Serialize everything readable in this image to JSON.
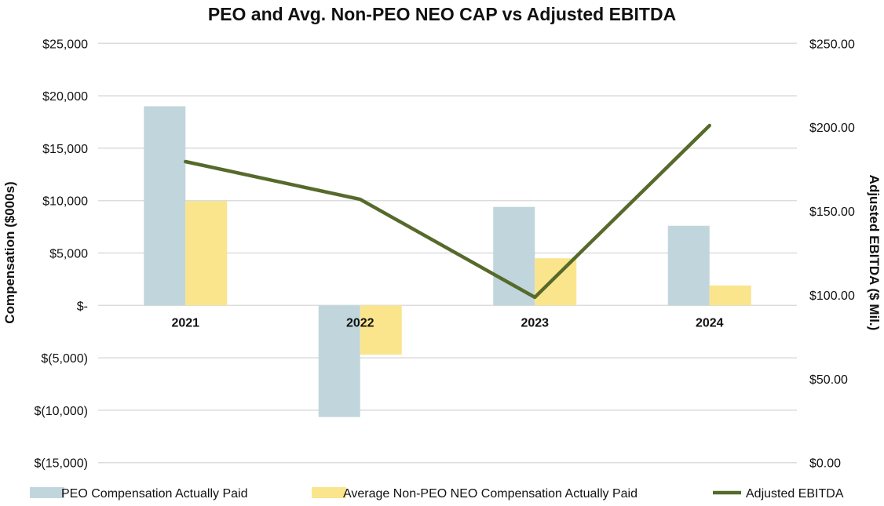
{
  "chart_data": {
    "type": "bar+line",
    "title": "PEO and Avg. Non-PEO NEO CAP vs Adjusted EBITDA",
    "categories": [
      "2021",
      "2022",
      "2023",
      "2024"
    ],
    "ylabel": "Compensation ($000s)",
    "y2label": "Adjusted EBITDA ($ Mil.)",
    "ylim": [
      -15000,
      25000
    ],
    "y2lim": [
      0,
      250
    ],
    "yticks": [
      25000,
      20000,
      15000,
      10000,
      5000,
      0,
      -5000,
      -10000,
      -15000
    ],
    "ytick_labels": [
      "$25,000",
      "$20,000",
      "$15,000",
      "$10,000",
      "$5,000",
      "$-",
      "$(5,000)",
      "$(10,000)",
      "$(15,000)"
    ],
    "y2ticks": [
      250,
      200,
      150,
      100,
      50,
      0
    ],
    "y2tick_labels": [
      "$250.00",
      "$200.00",
      "$150.00",
      "$100.00",
      "$50.00",
      "$0.00"
    ],
    "grid": true,
    "legend_position": "bottom",
    "series": [
      {
        "name": "PEO Compensation Actually Paid",
        "type": "bar",
        "axis": "left",
        "color": "#c0d6dc",
        "values": [
          19000,
          -10650,
          9400,
          7600
        ]
      },
      {
        "name": "Average Non-PEO NEO Compensation Actually Paid",
        "type": "bar",
        "axis": "left",
        "color": "#fae58c",
        "values": [
          9950,
          -4700,
          4500,
          1900
        ]
      },
      {
        "name": "Adjusted EBITDA",
        "type": "line",
        "axis": "right",
        "color": "#566a2b",
        "values": [
          179.5,
          157,
          98.6,
          201
        ]
      }
    ]
  }
}
